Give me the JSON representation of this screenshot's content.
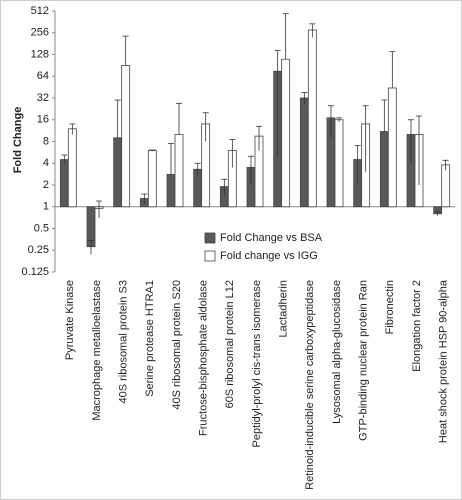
{
  "chart_data": {
    "type": "bar",
    "y_label": "Fold Change",
    "log_scale": 2,
    "categories": [
      "Pyruvate Kinase",
      "Macrophage metalloelastase",
      "40S ribosomal protein S3",
      "Serine protease HTRA1",
      "40S ribosomal protein S20",
      "Fructose-bisphosphate aldolase",
      "60S ribosomal protein L12",
      "Peptidyl-prolyl cis-trans isomerase",
      "Lactadherin",
      "Retinoid-inducible serine carboxypeptidase",
      "Lysosomal alpha-glucosidase",
      "GTP-binding nuclear protein Ran",
      "Fibronectin",
      "Elongation factor 2",
      "Heat shock protein HSP 90-alpha"
    ],
    "series": [
      {
        "name": "Fold Change vs BSA",
        "color": "#595959",
        "values": [
          4.5,
          0.28,
          9,
          1.3,
          2.8,
          3.3,
          1.9,
          3.5,
          75,
          32,
          17,
          4.5,
          11,
          10,
          0.8
        ],
        "errors": [
          0.7,
          0.06,
          21,
          0.2,
          4.7,
          0.7,
          0.5,
          1.5,
          70,
          6,
          8,
          2.5,
          19,
          6,
          0.05
        ]
      },
      {
        "name": "Fold change vs IGG",
        "color": "#ffffff",
        "values": [
          12,
          0.95,
          90,
          6,
          10,
          14,
          6,
          9.5,
          110,
          280,
          16,
          14,
          44,
          10,
          3.8
        ],
        "errors": [
          2,
          0.25,
          140,
          0.1,
          17,
          6,
          2.5,
          3.5,
          360,
          60,
          1,
          11,
          96,
          8,
          0.6
        ]
      }
    ],
    "ylim": [
      0.125,
      512
    ],
    "yticks": [
      0.125,
      0.25,
      0.5,
      1,
      2,
      4,
      8,
      16,
      32,
      64,
      128,
      256,
      512
    ],
    "bar_base": 1,
    "legend": "center"
  }
}
